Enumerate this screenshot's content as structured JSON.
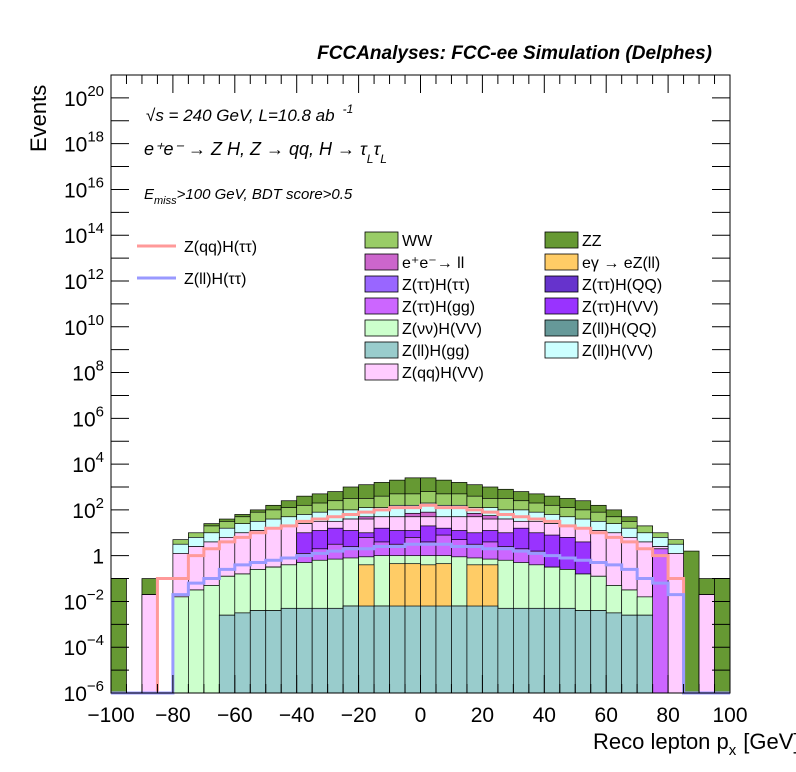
{
  "chart_data": {
    "type": "bar",
    "title": "FCCAnalyses: FCC-ee Simulation (Delphes)",
    "xlabel": "Reco lepton p",
    "xlabel_sub": "x",
    "xlabel_unit": "[GeV]",
    "ylabel": "Events",
    "xlim": [
      -100,
      100
    ],
    "ylim_log10": [
      -6,
      21
    ],
    "y_scale": "log",
    "annotations": {
      "line1": "√s = 240 GeV, L=10.8 ab",
      "line1_sup": "-1",
      "line2": "e⁺e⁻ → Z H, Z → qq, H → τ",
      "line2_sub1": "L",
      "line2_tau2": "τ",
      "line2_sub2": "L",
      "line3_main": "E",
      "line3_sub": "miss",
      "line3_rest": ">100 GeV, BDT score>0.5"
    },
    "x_ticks": [
      "−100",
      "−80",
      "−60",
      "−40",
      "−20",
      "0",
      "20",
      "40",
      "60",
      "80",
      "100"
    ],
    "x_tick_values": [
      -100,
      -80,
      -60,
      -40,
      -20,
      0,
      20,
      40,
      60,
      80,
      100
    ],
    "y_tick_labels": [
      {
        "exp": -6,
        "base": "10",
        "sup": "−6"
      },
      {
        "exp": -4,
        "base": "10",
        "sup": "−4"
      },
      {
        "exp": -2,
        "base": "10",
        "sup": "−2"
      },
      {
        "exp": 0,
        "base": "1",
        "sup": ""
      },
      {
        "exp": 2,
        "base": "10",
        "sup": "2"
      },
      {
        "exp": 4,
        "base": "10",
        "sup": "4"
      },
      {
        "exp": 6,
        "base": "10",
        "sup": "6"
      },
      {
        "exp": 8,
        "base": "10",
        "sup": "8"
      },
      {
        "exp": 10,
        "base": "10",
        "sup": "10"
      },
      {
        "exp": 12,
        "base": "10",
        "sup": "12"
      },
      {
        "exp": 14,
        "base": "10",
        "sup": "14"
      },
      {
        "exp": 16,
        "base": "10",
        "sup": "16"
      },
      {
        "exp": 18,
        "base": "10",
        "sup": "18"
      },
      {
        "exp": 20,
        "base": "10",
        "sup": "20"
      }
    ],
    "bins": [
      -100,
      -95,
      -90,
      -85,
      -80,
      -75,
      -70,
      -65,
      -60,
      -55,
      -50,
      -45,
      -40,
      -35,
      -30,
      -25,
      -20,
      -15,
      -10,
      -5,
      0,
      5,
      10,
      15,
      20,
      25,
      30,
      35,
      40,
      45,
      50,
      55,
      60,
      65,
      70,
      75,
      80,
      85,
      90,
      95,
      100
    ],
    "stack_log10": [
      {
        "name": "Z(ll)H(gg)",
        "color": "#99cccc",
        "values": [
          -7,
          -7,
          -7,
          -7,
          -7,
          -7,
          -7,
          -2.6,
          -2.5,
          -2.4,
          -2.4,
          -2.3,
          -2.3,
          -2.3,
          -2.3,
          -2.2,
          -2.2,
          -2.2,
          -2.2,
          -2.2,
          -2.2,
          -2.2,
          -2.2,
          -2.2,
          -2.2,
          -2.3,
          -2.3,
          -2.3,
          -2.3,
          -2.3,
          -2.4,
          -2.4,
          -2.5,
          -2.6,
          -2.6,
          -7,
          -7,
          -7,
          -7,
          -7
        ]
      },
      {
        "name": "eγ → eZ(ll)",
        "color": "#ffcc66",
        "values": [
          -7,
          -7,
          -7,
          -7,
          -7,
          -7,
          -7,
          -7,
          -7,
          -7,
          -7,
          -7,
          -7,
          -7,
          -7,
          -7,
          -2.5,
          -7,
          -1.8,
          -1.8,
          -2.0,
          -1.8,
          -7,
          -2.2,
          -2.2,
          -7,
          -7,
          -7,
          -7,
          -7,
          -7,
          -7,
          -7,
          -7,
          -7,
          -7,
          -7,
          -7,
          -7,
          -7
        ]
      },
      {
        "name": "Z(νν)H(VV)",
        "color": "#ccffcc",
        "values": [
          -7,
          -7,
          -7,
          -7,
          -1.8,
          -1.5,
          -1.3,
          -0.9,
          -0.8,
          -0.6,
          -0.5,
          -0.4,
          -0.3,
          -0.2,
          -0.15,
          -0.1,
          -0.05,
          -0.0,
          0.0,
          0.0,
          0.0,
          0.0,
          -0.05,
          -0.1,
          -0.15,
          -0.2,
          -0.3,
          -0.4,
          -0.5,
          -0.6,
          -0.8,
          -0.9,
          -1.3,
          -1.5,
          -1.8,
          -7,
          -7,
          -7,
          -7,
          -7
        ]
      },
      {
        "name": "Z(ττ)H(gg)",
        "color": "#cc66ff",
        "values": [
          -7,
          -7,
          -7,
          -7,
          -7,
          -7,
          -7,
          -7,
          -7,
          -7,
          -7,
          -7,
          0.1,
          0.3,
          0.5,
          0.4,
          0.8,
          0.6,
          0.5,
          0.8,
          0.6,
          0.9,
          0.7,
          0.5,
          0.6,
          0.4,
          0.3,
          0.2,
          -7,
          -7,
          -7,
          -7,
          -7,
          -7,
          -7,
          0.3,
          -7,
          -7,
          -7,
          -7
        ]
      },
      {
        "name": "Z(ττ)H(VV)",
        "color": "#9933ff",
        "values": [
          -7,
          -7,
          -7,
          -7,
          -7,
          -7,
          -7,
          -7,
          -7,
          -7,
          -7,
          -7,
          1.0,
          1.1,
          1.2,
          1.1,
          1.0,
          1.2,
          1.1,
          1.1,
          1.3,
          1.2,
          1.1,
          1.0,
          1.1,
          1.0,
          1.2,
          1.0,
          0.9,
          0.8,
          0.6,
          -7,
          -7,
          -7,
          -7,
          -7,
          -7,
          -7,
          -7,
          -7
        ]
      },
      {
        "name": "Z(qq)H(VV)",
        "color": "#ffccff",
        "values": [
          -7,
          -7,
          -1.7,
          -7,
          0.1,
          0.4,
          0.6,
          0.8,
          1.0,
          1.1,
          1.2,
          1.3,
          1.4,
          1.5,
          1.5,
          1.6,
          1.6,
          1.7,
          1.7,
          1.7,
          1.7,
          1.7,
          1.7,
          1.7,
          1.6,
          1.6,
          1.5,
          1.5,
          1.4,
          1.3,
          1.2,
          1.1,
          1.0,
          0.8,
          0.6,
          0.4,
          0.1,
          -7,
          -1.7,
          -7
        ]
      },
      {
        "name": "e⁺e⁻→ ll",
        "color": "#cc66cc",
        "values": [
          -7,
          -7,
          -7,
          -7,
          -7,
          -7,
          -7,
          -7,
          -7,
          -7,
          -7,
          -7,
          -7,
          -7,
          -7,
          -7,
          0.9,
          -7,
          -7,
          1.3,
          1.5,
          -7,
          -7,
          1.4,
          1.2,
          -7,
          -7,
          -7,
          -7,
          -7,
          -7,
          -7,
          -7,
          -7,
          -7,
          -7,
          -7,
          -7,
          -7,
          -7
        ]
      },
      {
        "name": "Z(qq)H(ττ) (bkg fill)",
        "color": "#ccffff",
        "values": [
          -7,
          -7,
          -7,
          -7,
          0.5,
          0.8,
          1.0,
          1.2,
          1.4,
          1.5,
          1.6,
          1.7,
          1.8,
          1.9,
          2.0,
          2.0,
          2.1,
          2.1,
          2.2,
          2.2,
          2.3,
          2.2,
          2.2,
          2.1,
          2.1,
          2.0,
          2.0,
          1.9,
          1.8,
          1.7,
          1.6,
          1.5,
          1.4,
          1.2,
          1.0,
          0.8,
          0.5,
          -7,
          -7,
          -7
        ]
      },
      {
        "name": "WW",
        "color": "#99cc66",
        "values": [
          -7,
          -7,
          -7,
          -7,
          0.7,
          1.0,
          1.3,
          1.5,
          1.7,
          1.9,
          2.0,
          2.1,
          2.2,
          2.3,
          2.4,
          2.5,
          2.5,
          2.6,
          2.7,
          2.7,
          2.8,
          2.7,
          2.7,
          2.6,
          2.5,
          2.5,
          2.4,
          2.3,
          2.2,
          2.1,
          2.0,
          1.9,
          1.7,
          1.5,
          1.3,
          1.0,
          0.7,
          -7,
          -7,
          -7
        ]
      },
      {
        "name": "ZZ",
        "color": "#669933",
        "values": [
          -7,
          -7,
          -1.0,
          -7,
          0.1,
          0.5,
          1.0,
          1.3,
          1.6,
          1.9,
          2.1,
          2.3,
          2.5,
          2.6,
          2.7,
          2.9,
          3.0,
          3.1,
          3.2,
          3.3,
          3.3,
          3.2,
          3.1,
          3.0,
          2.9,
          2.8,
          2.7,
          2.6,
          2.5,
          2.4,
          2.2,
          2.1,
          1.8,
          1.5,
          1.1,
          0.8,
          0.6,
          0.2,
          -1.0,
          -7
        ]
      }
    ],
    "stack_totals_log10": [
      -7,
      -7,
      -1.0,
      -7,
      0.3,
      0.9,
      1.4,
      1.6,
      1.8,
      2.0,
      2.2,
      2.4,
      2.6,
      2.7,
      2.8,
      3.0,
      3.1,
      3.2,
      3.3,
      3.4,
      3.4,
      3.3,
      3.2,
      3.1,
      3.0,
      2.9,
      2.8,
      2.7,
      2.6,
      2.5,
      2.4,
      2.2,
      2.0,
      1.7,
      1.3,
      0.8,
      0.6,
      0.2,
      -1.0,
      -7
    ],
    "layer_tops_log10": [
      [
        -7,
        -7,
        -7,
        -7,
        -7,
        -7,
        -7,
        -2.6,
        -2.5,
        -2.4,
        -2.4,
        -2.3,
        -2.3,
        -2.3,
        -2.3,
        -2.2,
        -2.2,
        -2.2,
        -2.2,
        -2.2,
        -2.2,
        -2.2,
        -2.2,
        -2.2,
        -2.2,
        -2.3,
        -2.3,
        -2.3,
        -2.3,
        -2.3,
        -2.4,
        -2.4,
        -2.5,
        -2.6,
        -2.6,
        -7,
        -7,
        -7,
        -7,
        -7
      ],
      [
        -7,
        -7,
        -7,
        -7,
        -7,
        -7,
        -7,
        -2.6,
        -2.5,
        -2.4,
        -2.4,
        -2.3,
        -2.3,
        -2.3,
        -2.3,
        -2.2,
        -0.4,
        -2.2,
        -0.35,
        -0.35,
        -0.4,
        -0.35,
        -2.2,
        -0.4,
        -0.4,
        -2.3,
        -2.3,
        -2.3,
        -2.3,
        -2.3,
        -2.4,
        -2.4,
        -2.5,
        -2.6,
        -2.6,
        -7,
        -7,
        -7,
        -7,
        -7
      ],
      [
        -7,
        -7,
        -7,
        -7,
        -1.8,
        -1.5,
        -1.3,
        -0.9,
        -0.8,
        -0.6,
        -0.5,
        -0.4,
        -0.3,
        -0.2,
        -0.15,
        -0.1,
        -0.05,
        0.0,
        0.0,
        0.0,
        0.0,
        0.0,
        -0.05,
        -0.1,
        -0.15,
        -0.2,
        -0.3,
        -0.4,
        -0.5,
        -0.6,
        -0.8,
        -0.9,
        -1.3,
        -1.5,
        -1.8,
        -7,
        -7,
        -7,
        -7,
        -7
      ],
      [
        -7,
        -7,
        -7,
        -7,
        -1.8,
        -1.5,
        -1.3,
        -0.9,
        -0.8,
        -0.6,
        -0.5,
        -0.4,
        0.1,
        0.3,
        0.5,
        0.4,
        0.8,
        0.6,
        0.5,
        0.8,
        0.6,
        0.9,
        0.7,
        0.5,
        0.6,
        0.4,
        0.3,
        0.2,
        -0.5,
        -0.6,
        -0.8,
        -0.9,
        -1.3,
        -1.5,
        -1.8,
        0.3,
        -7,
        -7,
        -7,
        -7
      ],
      [
        -7,
        -7,
        -7,
        -7,
        -1.8,
        -1.5,
        -1.3,
        -0.9,
        -0.8,
        -0.6,
        -0.5,
        -0.4,
        1.0,
        1.1,
        1.2,
        1.1,
        1.0,
        1.2,
        1.1,
        1.1,
        1.3,
        1.2,
        1.1,
        1.0,
        1.1,
        1.0,
        1.2,
        1.0,
        0.9,
        0.8,
        0.6,
        -0.9,
        -1.3,
        -1.5,
        -1.8,
        0.3,
        -7,
        -7,
        -7,
        -7
      ],
      [
        -7,
        -7,
        -1.7,
        -7,
        0.1,
        0.4,
        0.6,
        0.8,
        1.0,
        1.1,
        1.2,
        1.3,
        1.4,
        1.5,
        1.5,
        1.6,
        1.6,
        1.7,
        1.7,
        1.7,
        1.7,
        1.7,
        1.7,
        1.7,
        1.6,
        1.6,
        1.5,
        1.5,
        1.4,
        1.3,
        1.2,
        1.1,
        1.0,
        0.8,
        0.6,
        0.4,
        0.1,
        -7,
        -1.7,
        -7
      ],
      [
        -7,
        -7,
        -1.7,
        -7,
        0.1,
        0.4,
        0.6,
        0.8,
        1.0,
        1.1,
        1.2,
        1.3,
        1.4,
        1.5,
        1.5,
        1.6,
        1.7,
        1.7,
        1.7,
        1.85,
        1.9,
        1.7,
        1.7,
        1.85,
        1.75,
        1.6,
        1.5,
        1.5,
        1.4,
        1.3,
        1.2,
        1.1,
        1.0,
        0.8,
        0.6,
        0.4,
        0.1,
        -7,
        -1.7,
        -7
      ],
      [
        -7,
        -7,
        -1.7,
        -7,
        0.5,
        0.8,
        1.0,
        1.2,
        1.4,
        1.5,
        1.6,
        1.7,
        1.8,
        1.9,
        2.0,
        2.0,
        2.1,
        2.1,
        2.2,
        2.2,
        2.3,
        2.2,
        2.2,
        2.1,
        2.1,
        2.0,
        2.0,
        1.9,
        1.8,
        1.7,
        1.6,
        1.5,
        1.4,
        1.2,
        1.0,
        0.8,
        0.5,
        -7,
        -1.7,
        -7
      ],
      [
        -7,
        -7,
        -1.7,
        -7,
        0.7,
        1.0,
        1.3,
        1.5,
        1.7,
        1.9,
        2.0,
        2.1,
        2.2,
        2.3,
        2.4,
        2.5,
        2.5,
        2.6,
        2.7,
        2.7,
        2.8,
        2.7,
        2.7,
        2.6,
        2.5,
        2.5,
        2.4,
        2.3,
        2.2,
        2.1,
        2.0,
        1.9,
        1.7,
        1.5,
        1.3,
        1.0,
        0.7,
        -7,
        -1.7,
        -7
      ],
      [
        -7,
        -7,
        -1.0,
        -7,
        0.3,
        0.9,
        1.4,
        1.6,
        1.8,
        2.0,
        2.2,
        2.4,
        2.6,
        2.7,
        2.8,
        3.0,
        3.1,
        3.2,
        3.3,
        3.4,
        3.4,
        3.3,
        3.2,
        3.1,
        3.0,
        2.9,
        2.8,
        2.7,
        2.6,
        2.5,
        2.4,
        2.2,
        2.0,
        1.7,
        1.3,
        0.8,
        0.6,
        0.2,
        -1.0,
        -7
      ]
    ],
    "stack_edge_bins": {
      "left_outer": -1.0,
      "right_outer": -1.0
    },
    "lines": [
      {
        "name": "Z(qq)H(ττ)",
        "color": "#ff9999",
        "values": [
          -7,
          -7,
          -7,
          -1.0,
          -1.0,
          0.0,
          0.3,
          0.6,
          0.8,
          1.0,
          1.2,
          1.3,
          1.5,
          1.6,
          1.7,
          1.8,
          1.9,
          2.0,
          2.1,
          2.1,
          2.2,
          2.1,
          2.1,
          2.0,
          1.9,
          1.8,
          1.7,
          1.6,
          1.5,
          1.3,
          1.2,
          1.0,
          0.8,
          0.6,
          0.3,
          0.0,
          -1.0,
          -7,
          -7,
          -7
        ]
      },
      {
        "name": "Z(ll)H(ττ)",
        "color": "#9999ff",
        "values": [
          -7,
          -7,
          -7,
          -7,
          -1.7,
          -1.2,
          -1.0,
          -0.6,
          -0.4,
          -0.3,
          -0.2,
          -0.1,
          0.0,
          0.1,
          0.2,
          0.3,
          0.3,
          0.4,
          0.4,
          0.5,
          0.5,
          0.5,
          0.4,
          0.4,
          0.3,
          0.3,
          0.2,
          0.1,
          0.0,
          -0.1,
          -0.2,
          -0.3,
          -0.4,
          -0.6,
          -1.0,
          -1.2,
          -1.7,
          -7,
          -7,
          -7
        ]
      }
    ],
    "legend_lines": [
      {
        "label": "Z(qq)H(ττ)",
        "color": "#ff9999"
      },
      {
        "label": "Z(ll)H(ττ)",
        "color": "#9999ff"
      }
    ],
    "legend_boxes": [
      {
        "label": "WW",
        "color": "#99cc66"
      },
      {
        "label": "ZZ",
        "color": "#669933"
      },
      {
        "label": "e⁺e⁻→ ll",
        "color": "#cc66cc"
      },
      {
        "label": "eγ → eZ(ll)",
        "color": "#ffcc66"
      },
      {
        "label": "Z(ττ)H(ττ)",
        "color": "#9966ff"
      },
      {
        "label": "Z(ττ)H(QQ)",
        "color": "#6633cc"
      },
      {
        "label": "Z(ττ)H(gg)",
        "color": "#cc66ff"
      },
      {
        "label": "Z(ττ)H(VV)",
        "color": "#9933ff"
      },
      {
        "label": "Z(νν)H(VV)",
        "color": "#ccffcc"
      },
      {
        "label": "Z(ll)H(QQ)",
        "color": "#669999"
      },
      {
        "label": "Z(ll)H(gg)",
        "color": "#99cccc"
      },
      {
        "label": "Z(ll)H(VV)",
        "color": "#ccffff"
      },
      {
        "label": "Z(qq)H(VV)",
        "color": "#ffccff"
      }
    ],
    "legend_placement": "top",
    "grid": false
  }
}
